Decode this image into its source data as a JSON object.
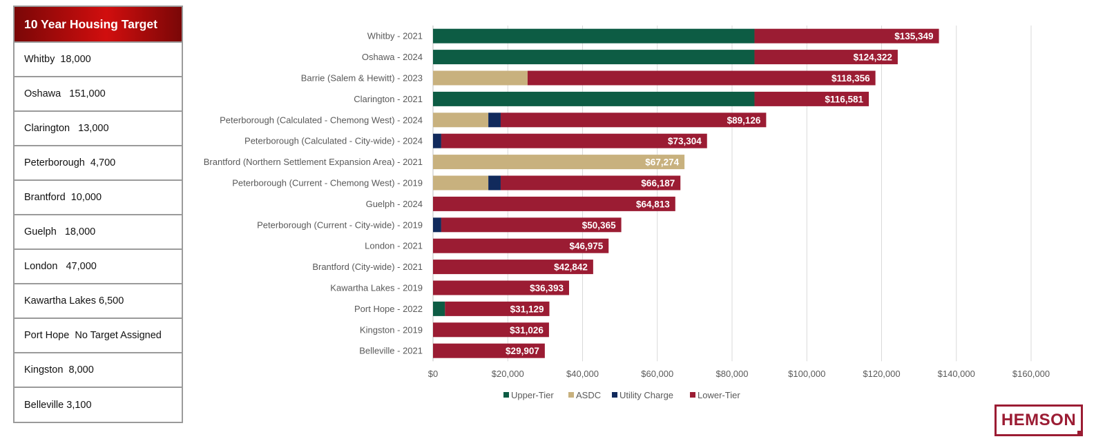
{
  "targets": {
    "title": "10 Year  Housing Target",
    "rows": [
      "Whitby  18,000",
      "Oshawa   151,000",
      "Clarington   13,000",
      "Peterborough  4,700",
      "Brantford  10,000",
      "Guelph   18,000",
      "London   47,000",
      "Kawartha Lakes 6,500",
      "Port Hope  No Target Assigned",
      "Kingston  8,000",
      "Belleville 3,100"
    ]
  },
  "logo": {
    "text": "HEMSON",
    "color": "#9b1c33"
  },
  "chart_data": {
    "type": "bar",
    "orientation": "horizontal",
    "stacked": true,
    "categories": [
      "Whitby - 2021",
      "Oshawa - 2024",
      "Barrie (Salem & Hewitt) - 2023",
      "Clarington - 2021",
      "Peterborough (Calculated - Chemong West) - 2024",
      "Peterborough (Calculated - City-wide) - 2024",
      "Brantford (Northern Settlement Expansion Area) - 2021",
      "Peterborough (Current - Chemong West) - 2019",
      "Guelph - 2024",
      "Peterborough (Current - City-wide) - 2019",
      "London - 2021",
      "Brantford (City-wide) - 2021",
      "Kawartha Lakes - 2019",
      "Port Hope - 2022",
      "Kingston - 2019",
      "Belleville - 2021"
    ],
    "series": [
      {
        "name": "Upper-Tier",
        "color": "#0d5c44",
        "values": [
          86000,
          86000,
          0,
          86000,
          0,
          0,
          0,
          0,
          0,
          0,
          0,
          0,
          0,
          3200,
          0,
          0
        ]
      },
      {
        "name": "ASDC",
        "color": "#c8b17e",
        "values": [
          0,
          0,
          25300,
          0,
          14800,
          0,
          67274,
          14800,
          0,
          0,
          0,
          0,
          0,
          0,
          0,
          0
        ]
      },
      {
        "name": "Utility Charge",
        "color": "#112a5c",
        "values": [
          0,
          0,
          0,
          0,
          3300,
          2200,
          0,
          3300,
          0,
          2200,
          0,
          0,
          0,
          0,
          0,
          0
        ]
      },
      {
        "name": "Lower-Tier",
        "color": "#9b1c33",
        "values": [
          49349,
          38322,
          93056,
          30581,
          71026,
          71104,
          0,
          48087,
          64813,
          48165,
          46975,
          42842,
          36393,
          27929,
          31026,
          29907
        ]
      }
    ],
    "totals": [
      135349,
      124322,
      118356,
      116581,
      89126,
      73304,
      67274,
      66187,
      64813,
      50365,
      46975,
      42842,
      36393,
      31129,
      31026,
      29907
    ],
    "total_labels": [
      "$135,349",
      "$124,322",
      "$118,356",
      "$116,581",
      "$89,126",
      "$73,304",
      "$67,274",
      "$66,187",
      "$64,813",
      "$50,365",
      "$46,975",
      "$42,842",
      "$36,393",
      "$31,129",
      "$31,026",
      "$29,907"
    ],
    "xlim": [
      0,
      160000
    ],
    "x_ticks": [
      0,
      20000,
      40000,
      60000,
      80000,
      100000,
      120000,
      140000,
      160000
    ],
    "x_tick_labels": [
      "$0",
      "$20,000",
      "$40,000",
      "$60,000",
      "$80,000",
      "$100,000",
      "$120,000",
      "$140,000",
      "$160,000"
    ],
    "grid": true,
    "legend_position": "bottom",
    "title": "",
    "xlabel": "",
    "ylabel": ""
  }
}
